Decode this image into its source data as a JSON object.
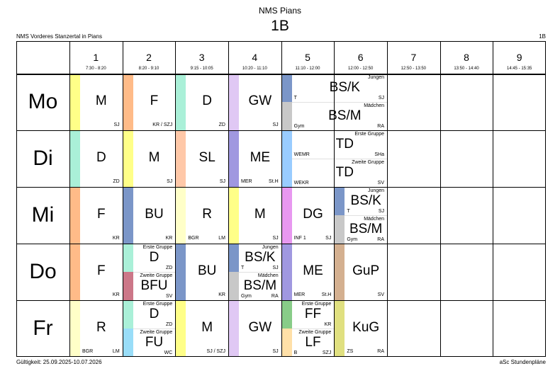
{
  "school_title": "NMS Pians",
  "class_title": "1B",
  "school_name": "NMS Vorderes Stanzertal in Pians",
  "class_corner": "1B",
  "validity": "Gültigkeit: 25.09.2025-10.07.2026",
  "footer_brand": "aSc Stundenpläne",
  "periods": [
    {
      "num": "1",
      "time": "7:30 - 8:20"
    },
    {
      "num": "2",
      "time": "8:20 - 9:10"
    },
    {
      "num": "3",
      "time": "9:15 - 10:05"
    },
    {
      "num": "4",
      "time": "10:20 - 11:10"
    },
    {
      "num": "5",
      "time": "11:10 - 12:00"
    },
    {
      "num": "6",
      "time": "12:00 - 12:50"
    },
    {
      "num": "7",
      "time": "12:50 - 13:50"
    },
    {
      "num": "8",
      "time": "13:50 - 14:40"
    },
    {
      "num": "9",
      "time": "14:45 - 15:35"
    }
  ],
  "days": [
    {
      "name": "Mo",
      "lessons": [
        {
          "p": 0,
          "full": {
            "subject": "M",
            "teacher": "SJ",
            "color": "#ffff88"
          }
        },
        {
          "p": 1,
          "full": {
            "subject": "F",
            "teacher": "KR / SZJ",
            "color": "#ffbb88"
          }
        },
        {
          "p": 2,
          "full": {
            "subject": "D",
            "teacher": "ZD",
            "color": "#aaf0d8"
          }
        },
        {
          "p": 3,
          "full": {
            "subject": "GW",
            "teacher": "SJ",
            "color": "#e0c8f4"
          }
        },
        {
          "p": 4,
          "span": 2,
          "split": [
            {
              "group": "Jungen",
              "subject": "BS/K",
              "room": "T",
              "teacher": "SJ",
              "color": "#7b96c8"
            },
            {
              "group": "Mädchen",
              "subject": "BS/M",
              "room": "Gym",
              "teacher": "RA",
              "color": "#c8c8c8"
            }
          ]
        }
      ]
    },
    {
      "name": "Di",
      "lessons": [
        {
          "p": 0,
          "full": {
            "subject": "D",
            "teacher": "ZD",
            "color": "#aaf0d8"
          }
        },
        {
          "p": 1,
          "full": {
            "subject": "M",
            "teacher": "SJ",
            "color": "#ffff88"
          }
        },
        {
          "p": 2,
          "full": {
            "subject": "SL",
            "teacher": "SJ",
            "color": "#ffc8a8"
          }
        },
        {
          "p": 3,
          "full": {
            "subject": "ME",
            "room": "MER",
            "teacher": "St.H",
            "color": "#a098e0"
          }
        },
        {
          "p": 4,
          "span": 2,
          "split": [
            {
              "group": "Erste Gruppe",
              "subject": "TD",
              "room": "WEMR",
              "teacher": "SHa",
              "color": "#99ccff"
            },
            {
              "group": "Zweite Gruppe",
              "subject": "TD",
              "room": "WEKR",
              "teacher": "SV",
              "color": "#99ccff"
            }
          ]
        }
      ]
    },
    {
      "name": "Mi",
      "lessons": [
        {
          "p": 0,
          "full": {
            "subject": "F",
            "teacher": "KR",
            "color": "#ffbb88"
          }
        },
        {
          "p": 1,
          "full": {
            "subject": "BU",
            "teacher": "KR",
            "color": "#7b96c8"
          }
        },
        {
          "p": 2,
          "full": {
            "subject": "R",
            "room": "BGR",
            "teacher": "LM",
            "color": "#ffffc8"
          }
        },
        {
          "p": 3,
          "full": {
            "subject": "M",
            "teacher": "SJ",
            "color": "#ffff88"
          }
        },
        {
          "p": 4,
          "full": {
            "subject": "DG",
            "room": "INF 1",
            "teacher": "SJ",
            "color": "#e898f0"
          }
        },
        {
          "p": 5,
          "split": [
            {
              "group": "Jungen",
              "subject": "BS/K",
              "room": "T",
              "teacher": "SJ",
              "color": "#7b96c8"
            },
            {
              "group": "Mädchen",
              "subject": "BS/M",
              "room": "Gym",
              "teacher": "RA",
              "color": "#c8c8c8"
            }
          ]
        }
      ]
    },
    {
      "name": "Do",
      "lessons": [
        {
          "p": 0,
          "full": {
            "subject": "F",
            "teacher": "KR",
            "color": "#ffbb88"
          }
        },
        {
          "p": 1,
          "split": [
            {
              "group": "Erste Gruppe",
              "subject": "D",
              "room": "",
              "teacher": "ZD",
              "color": "#aaf0d8"
            },
            {
              "group": "Zweite Gruppe",
              "subject": "BFU",
              "room": "",
              "teacher": "SV",
              "color": "#cc7788"
            }
          ]
        },
        {
          "p": 2,
          "full": {
            "subject": "BU",
            "teacher": "KR",
            "color": "#7b96c8"
          }
        },
        {
          "p": 3,
          "split": [
            {
              "group": "Jungen",
              "subject": "BS/K",
              "room": "T",
              "teacher": "SJ",
              "color": "#7b96c8"
            },
            {
              "group": "Mädchen",
              "subject": "BS/M",
              "room": "Gym",
              "teacher": "RA",
              "color": "#c8c8c8"
            }
          ]
        },
        {
          "p": 4,
          "full": {
            "subject": "ME",
            "room": "MER",
            "teacher": "St.H",
            "color": "#a098e0"
          }
        },
        {
          "p": 5,
          "full": {
            "subject": "GuP",
            "teacher": "SV",
            "color": "#d4b090"
          }
        }
      ]
    },
    {
      "name": "Fr",
      "lessons": [
        {
          "p": 0,
          "full": {
            "subject": "R",
            "room": "BGR",
            "teacher": "LM",
            "color": "#ffffc8"
          }
        },
        {
          "p": 1,
          "split": [
            {
              "group": "Erste Gruppe",
              "subject": "D",
              "room": "",
              "teacher": "ZD",
              "color": "#aaf0d8"
            },
            {
              "group": "Zweite Gruppe",
              "subject": "FU",
              "room": "",
              "teacher": "WC",
              "color": "#99ddf8"
            }
          ]
        },
        {
          "p": 2,
          "full": {
            "subject": "M",
            "teacher": "SJ / SZJ",
            "color": "#ffff88"
          }
        },
        {
          "p": 3,
          "full": {
            "subject": "GW",
            "teacher": "SJ",
            "color": "#e0c8f4"
          }
        },
        {
          "p": 4,
          "split": [
            {
              "group": "Erste Gruppe",
              "subject": "FF",
              "room": "",
              "teacher": "KR",
              "color": "#88cc88"
            },
            {
              "group": "Zweite Gruppe",
              "subject": "LF",
              "room": "B",
              "teacher": "SZJ",
              "color": "#ffe0a8"
            }
          ]
        },
        {
          "p": 5,
          "full": {
            "subject": "KuG",
            "room": "ZS",
            "teacher": "RA",
            "color": "#e0e080"
          }
        }
      ]
    }
  ]
}
